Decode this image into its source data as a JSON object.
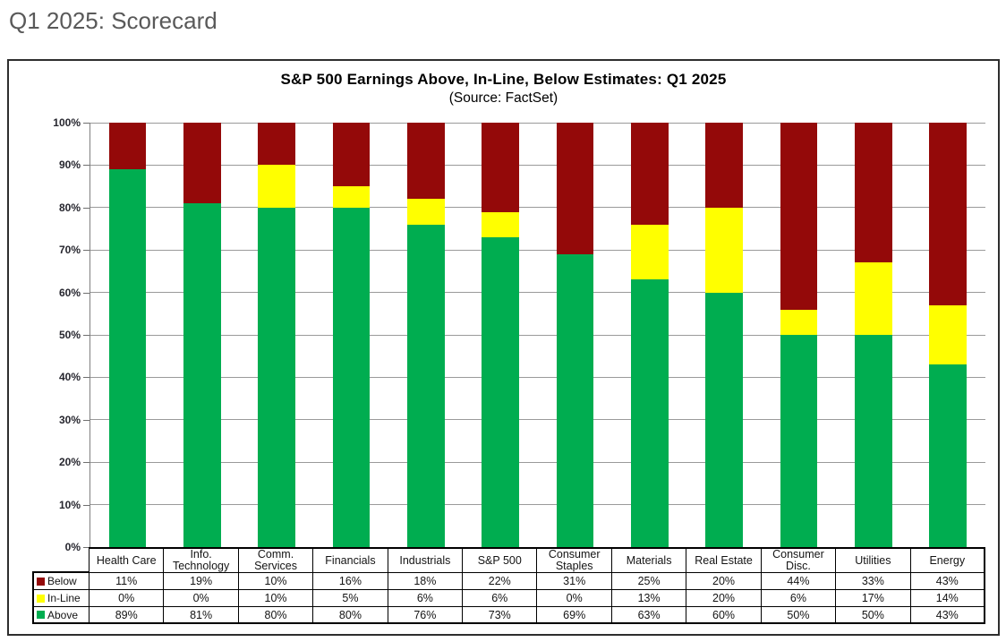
{
  "page": {
    "title": "Q1 2025: Scorecard"
  },
  "chart": {
    "title": "S&P 500 Earnings Above, In-Line, Below Estimates: Q1 2025",
    "subtitle": "(Source: FactSet)",
    "colors": {
      "below": "#940909",
      "in_line": "#FFFF00",
      "above": "#00AD50",
      "gridline": "#9A9A9A",
      "axis": "#7F7F7F"
    }
  },
  "chart_data": {
    "type": "bar",
    "stacked": true,
    "ylim": [
      0,
      100
    ],
    "y_ticks": [
      "0%",
      "10%",
      "20%",
      "30%",
      "40%",
      "50%",
      "60%",
      "70%",
      "80%",
      "90%",
      "100%"
    ],
    "grid": "horizontal",
    "legend_position": "table-left",
    "value_suffix": "%",
    "categories": [
      "Health Care",
      "Info.\nTechnology",
      "Comm.\nServices",
      "Financials",
      "Industrials",
      "S&P 500",
      "Consumer\nStaples",
      "Materials",
      "Real Estate",
      "Consumer\nDisc.",
      "Utilities",
      "Energy"
    ],
    "series": [
      {
        "name": "Below",
        "color": "#940909",
        "values": [
          11,
          19,
          10,
          16,
          18,
          22,
          31,
          25,
          20,
          44,
          33,
          43
        ]
      },
      {
        "name": "In-Line",
        "color": "#FFFF00",
        "values": [
          0,
          0,
          10,
          5,
          6,
          6,
          0,
          13,
          20,
          6,
          17,
          14
        ]
      },
      {
        "name": "Above",
        "color": "#00AD50",
        "values": [
          89,
          81,
          80,
          80,
          76,
          73,
          69,
          63,
          60,
          50,
          50,
          43
        ]
      }
    ]
  }
}
